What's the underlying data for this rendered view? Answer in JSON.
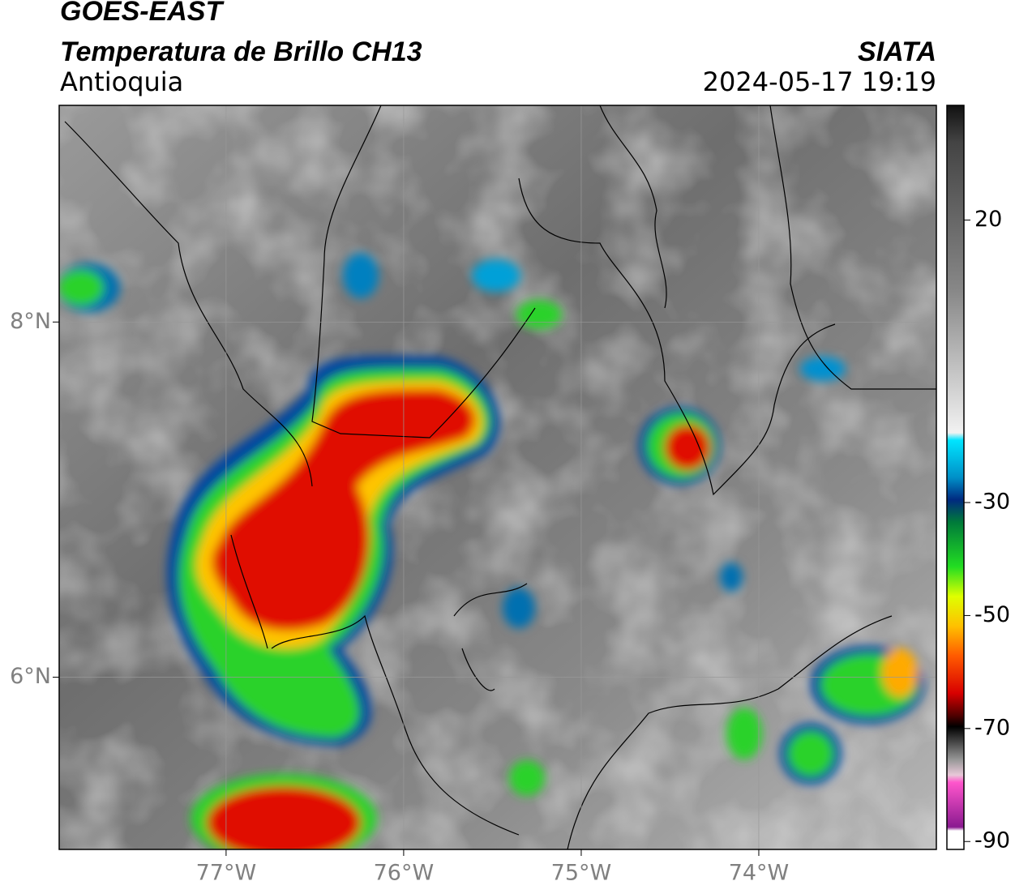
{
  "header": {
    "satellite": "GOES-EAST",
    "product": "Temperatura de Brillo CH13",
    "region": "Antioquia",
    "agency": "SIATA",
    "datetime": "2024-05-17 19:19"
  },
  "map": {
    "xlim": [
      -77.94,
      -73.0
    ],
    "ylim": [
      5.03,
      9.22
    ],
    "xticks": [
      {
        "value": -77,
        "label": "77°W"
      },
      {
        "value": -76,
        "label": "76°W"
      },
      {
        "value": -75,
        "label": "75°W"
      },
      {
        "value": -74,
        "label": "74°W"
      }
    ],
    "yticks": [
      {
        "value": 8,
        "label": "8°N"
      },
      {
        "value": 6,
        "label": "6°N"
      }
    ]
  },
  "colorbar": {
    "lim": [
      -91.4,
      40.3
    ],
    "ticks": [
      20,
      -30,
      -50,
      -70,
      -90
    ]
  }
}
